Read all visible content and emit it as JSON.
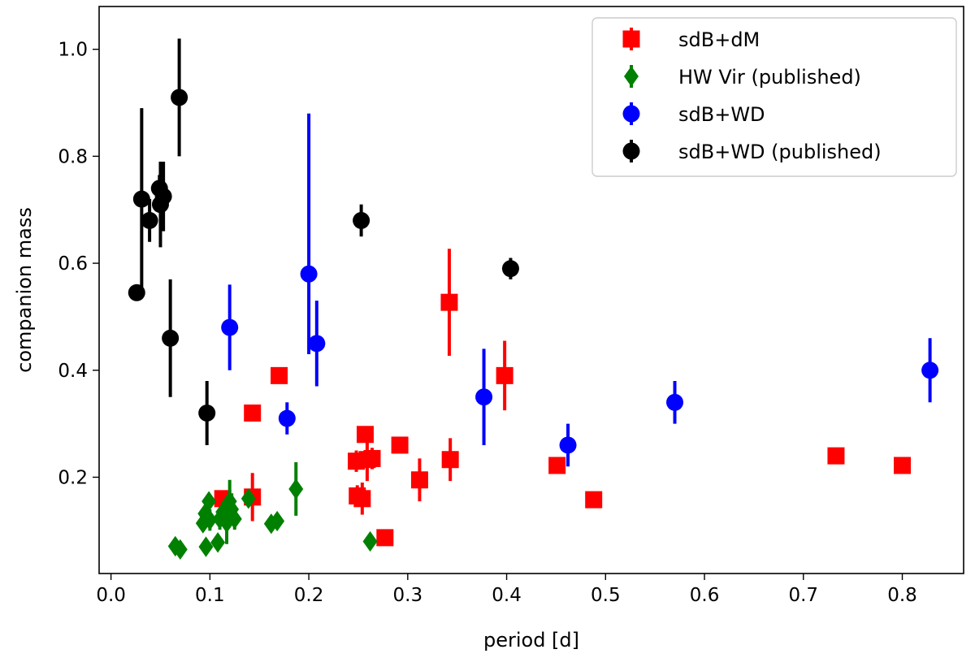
{
  "chart_data": {
    "type": "scatter",
    "xlabel": "period [d]",
    "ylabel": "companion mass",
    "xlim": [
      -0.012,
      0.862
    ],
    "ylim": [
      0.02,
      1.08
    ],
    "xticks": [
      "0.0",
      "0.1",
      "0.2",
      "0.3",
      "0.4",
      "0.5",
      "0.6",
      "0.7",
      "0.8"
    ],
    "xtick_values": [
      0.0,
      0.1,
      0.2,
      0.3,
      0.4,
      0.5,
      0.6,
      0.7,
      0.8
    ],
    "yticks": [
      "0.2",
      "0.4",
      "0.6",
      "0.8",
      "1.0"
    ],
    "ytick_values": [
      0.2,
      0.4,
      0.6,
      0.8,
      1.0
    ],
    "grid": false,
    "legend_position": "top-right",
    "series": [
      {
        "name": "sdB+dM",
        "marker": "square",
        "color": "#ff0000",
        "points": [
          {
            "x": 0.113,
            "y": 0.16,
            "err": 0.01
          },
          {
            "x": 0.143,
            "y": 0.32,
            "err": 0.01
          },
          {
            "x": 0.143,
            "y": 0.163,
            "err": 0.045
          },
          {
            "x": 0.17,
            "y": 0.39,
            "err": 0.01
          },
          {
            "x": 0.248,
            "y": 0.23,
            "err": 0.02
          },
          {
            "x": 0.249,
            "y": 0.165,
            "err": 0.02
          },
          {
            "x": 0.254,
            "y": 0.16,
            "err": 0.03
          },
          {
            "x": 0.257,
            "y": 0.28,
            "err": 0.015
          },
          {
            "x": 0.259,
            "y": 0.233,
            "err": 0.04
          },
          {
            "x": 0.264,
            "y": 0.235,
            "err": 0.02
          },
          {
            "x": 0.277,
            "y": 0.087,
            "err": 0.005
          },
          {
            "x": 0.292,
            "y": 0.26,
            "err": 0.015
          },
          {
            "x": 0.312,
            "y": 0.195,
            "err": 0.04
          },
          {
            "x": 0.342,
            "y": 0.527,
            "err": 0.1
          },
          {
            "x": 0.343,
            "y": 0.233,
            "err": 0.04
          },
          {
            "x": 0.398,
            "y": 0.39,
            "err": 0.065
          },
          {
            "x": 0.451,
            "y": 0.222,
            "err": 0.01
          },
          {
            "x": 0.488,
            "y": 0.158,
            "err": 0.007
          },
          {
            "x": 0.733,
            "y": 0.24,
            "err": 0.015
          },
          {
            "x": 0.8,
            "y": 0.222,
            "err": 0.015
          }
        ]
      },
      {
        "name": "HW Vir (published)",
        "marker": "diamond",
        "color": "#008000",
        "points": [
          {
            "x": 0.065,
            "y": 0.071,
            "err": 0.008
          },
          {
            "x": 0.07,
            "y": 0.065,
            "err": 0.008
          },
          {
            "x": 0.093,
            "y": 0.114,
            "err": 0.01
          },
          {
            "x": 0.095,
            "y": 0.132,
            "err": 0.015
          },
          {
            "x": 0.096,
            "y": 0.07,
            "err": 0.008
          },
          {
            "x": 0.099,
            "y": 0.155,
            "err": 0.015
          },
          {
            "x": 0.1,
            "y": 0.12,
            "err": 0.02
          },
          {
            "x": 0.108,
            "y": 0.078,
            "err": 0.01
          },
          {
            "x": 0.11,
            "y": 0.122,
            "err": 0.02
          },
          {
            "x": 0.113,
            "y": 0.135,
            "err": 0.02
          },
          {
            "x": 0.117,
            "y": 0.115,
            "err": 0.04
          },
          {
            "x": 0.12,
            "y": 0.155,
            "err": 0.04
          },
          {
            "x": 0.122,
            "y": 0.14,
            "err": 0.03
          },
          {
            "x": 0.125,
            "y": 0.122,
            "err": 0.02
          },
          {
            "x": 0.139,
            "y": 0.16,
            "err": 0.015
          },
          {
            "x": 0.162,
            "y": 0.113,
            "err": 0.01
          },
          {
            "x": 0.168,
            "y": 0.118,
            "err": 0.01
          },
          {
            "x": 0.187,
            "y": 0.178,
            "err": 0.05
          },
          {
            "x": 0.262,
            "y": 0.08,
            "err": 0.01
          }
        ]
      },
      {
        "name": "sdB+WD",
        "marker": "circle",
        "color": "#0000ff",
        "points": [
          {
            "x": 0.12,
            "y": 0.48,
            "err": 0.08
          },
          {
            "x": 0.178,
            "y": 0.31,
            "err": 0.03
          },
          {
            "x": 0.2,
            "y": 0.58,
            "errUp": 0.3,
            "errDown": 0.15
          },
          {
            "x": 0.208,
            "y": 0.45,
            "err": 0.08
          },
          {
            "x": 0.377,
            "y": 0.35,
            "err": 0.09
          },
          {
            "x": 0.462,
            "y": 0.26,
            "err": 0.04
          },
          {
            "x": 0.57,
            "y": 0.34,
            "err": 0.04
          },
          {
            "x": 0.828,
            "y": 0.4,
            "err": 0.06
          }
        ]
      },
      {
        "name": "sdB+WD (published)",
        "marker": "circle",
        "color": "#000000",
        "points": [
          {
            "x": 0.026,
            "y": 0.545,
            "err": 0.015
          },
          {
            "x": 0.031,
            "y": 0.72,
            "err": 0.17
          },
          {
            "x": 0.039,
            "y": 0.68,
            "err": 0.04
          },
          {
            "x": 0.049,
            "y": 0.74,
            "err": 0.025
          },
          {
            "x": 0.05,
            "y": 0.71,
            "err": 0.08
          },
          {
            "x": 0.053,
            "y": 0.725,
            "err": 0.065
          },
          {
            "x": 0.06,
            "y": 0.46,
            "err": 0.11
          },
          {
            "x": 0.069,
            "y": 0.91,
            "err": 0.11
          },
          {
            "x": 0.097,
            "y": 0.32,
            "err": 0.06
          },
          {
            "x": 0.253,
            "y": 0.68,
            "err": 0.03
          },
          {
            "x": 0.404,
            "y": 0.59,
            "err": 0.02
          }
        ]
      }
    ]
  }
}
